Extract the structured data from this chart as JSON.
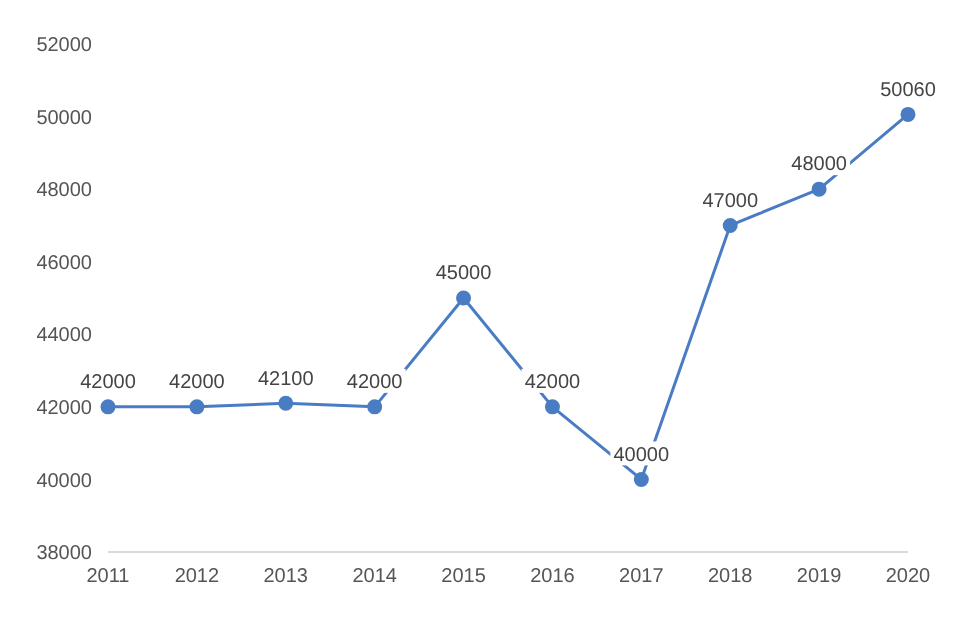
{
  "chart_data": {
    "type": "line",
    "categories": [
      "2011",
      "2012",
      "2013",
      "2014",
      "2015",
      "2016",
      "2017",
      "2018",
      "2019",
      "2020"
    ],
    "series": [
      {
        "color": "#4a7cc4",
        "values": [
          42000,
          42000,
          42100,
          42000,
          45000,
          42000,
          40000,
          47000,
          48000,
          50060
        ]
      }
    ],
    "ylim": [
      38000,
      52000
    ],
    "yticks": [
      38000,
      40000,
      42000,
      44000,
      46000,
      48000,
      50000,
      52000
    ],
    "legend": false,
    "marker": "circle",
    "line_style": "solid",
    "data_labels": true
  }
}
